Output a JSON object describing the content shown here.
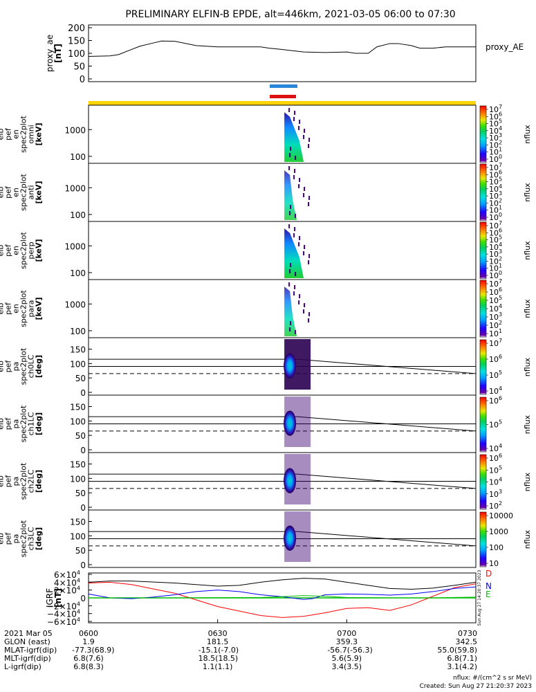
{
  "title": "PRELIMINARY ELFIN-B EPDE, alt=446km, 2021-03-05 06:00 to 07:30",
  "chart_data": [
    {
      "type": "line",
      "id": "proxy_ae",
      "ylabel": [
        "proxy_ae",
        "[nT]"
      ],
      "legend": "proxy_AE",
      "yticks": [
        "200",
        "150",
        "100",
        "50",
        "0"
      ],
      "ylim": [
        0,
        200
      ],
      "x_minutes": [
        0,
        5,
        7,
        10,
        12,
        15,
        17,
        20,
        25,
        30,
        35,
        40,
        42,
        45,
        50,
        55,
        60,
        62,
        65,
        67,
        70,
        72,
        75,
        77,
        80,
        83,
        86,
        90
      ],
      "values": [
        88,
        90,
        95,
        115,
        128,
        140,
        148,
        147,
        130,
        125,
        125,
        125,
        120,
        115,
        105,
        103,
        105,
        100,
        100,
        125,
        138,
        138,
        130,
        120,
        120,
        125,
        125,
        125
      ]
    },
    {
      "type": "heatmap",
      "id": "en_omni",
      "ylabel": [
        "elb",
        "pef",
        "en",
        "spec2plot",
        "omni",
        "[keV]"
      ],
      "yticks": [
        "1000",
        "100"
      ],
      "colorbar": {
        "label": "nflux",
        "ticks": [
          "10",
          "10",
          "10",
          "10",
          "10",
          "10",
          "10",
          "10"
        ],
        "exponents": [
          "7",
          "6",
          "5",
          "4",
          "3",
          "2",
          "1",
          "0"
        ]
      }
    },
    {
      "type": "heatmap",
      "id": "en_anti",
      "ylabel": [
        "elb",
        "pef",
        "en",
        "spec2plot",
        "anti",
        "[keV]"
      ],
      "yticks": [
        "1000",
        "100"
      ],
      "colorbar": {
        "label": "nflux",
        "ticks": [
          "10",
          "10",
          "10",
          "10",
          "10",
          "10",
          "10",
          "10"
        ],
        "exponents": [
          "7",
          "6",
          "5",
          "4",
          "3",
          "2",
          "1",
          "0"
        ]
      }
    },
    {
      "type": "heatmap",
      "id": "en_perp",
      "ylabel": [
        "elb",
        "pef",
        "en",
        "spec2plot",
        "perp",
        "[keV]"
      ],
      "yticks": [
        "1000",
        "100"
      ],
      "colorbar": {
        "label": "nflux",
        "ticks": [
          "10",
          "10",
          "10",
          "10",
          "10",
          "10",
          "10",
          "10"
        ],
        "exponents": [
          "7",
          "6",
          "5",
          "4",
          "3",
          "2",
          "1",
          "0"
        ]
      }
    },
    {
      "type": "heatmap",
      "id": "en_para",
      "ylabel": [
        "elb",
        "pef",
        "en",
        "spec2plot",
        "para",
        "[keV]"
      ],
      "yticks": [
        "1000",
        "100"
      ],
      "colorbar": {
        "label": "nflux",
        "ticks": [
          "10",
          "10",
          "10",
          "10",
          "10",
          "10",
          "10"
        ],
        "exponents": [
          "7",
          "6",
          "5",
          "4",
          "3",
          "2",
          "1"
        ]
      }
    },
    {
      "type": "heatmap",
      "id": "pa_ch0",
      "ylabel": [
        "elb",
        "pef",
        "pa",
        "spec2plot",
        "ch0LC",
        "[deg]"
      ],
      "yticks": [
        "150",
        "100",
        "50",
        "0"
      ],
      "ylim": [
        0,
        180
      ],
      "colorbar": {
        "label": "nflux",
        "ticks": [
          "10",
          "10",
          "10",
          "10"
        ],
        "exponents": [
          "7",
          "6",
          "5",
          "4"
        ]
      }
    },
    {
      "type": "heatmap",
      "id": "pa_ch1",
      "ylabel": [
        "elb",
        "pef",
        "pa",
        "spec2plot",
        "ch1LC",
        "[deg]"
      ],
      "yticks": [
        "150",
        "100",
        "50",
        "0"
      ],
      "ylim": [
        0,
        180
      ],
      "colorbar": {
        "label": "nflux",
        "ticks": [
          "10",
          "10",
          "10"
        ],
        "exponents": [
          "6",
          "5",
          "4"
        ]
      }
    },
    {
      "type": "heatmap",
      "id": "pa_ch2",
      "ylabel": [
        "elb",
        "pef",
        "pa",
        "spec2plot",
        "ch2LC",
        "[deg]"
      ],
      "yticks": [
        "150",
        "100",
        "50",
        "0"
      ],
      "ylim": [
        0,
        180
      ],
      "colorbar": {
        "label": "nflux",
        "ticks": [
          "10",
          "10",
          "10",
          "10",
          "10"
        ],
        "exponents": [
          "6",
          "5",
          "4",
          "3",
          "2"
        ]
      }
    },
    {
      "type": "heatmap",
      "id": "pa_ch3",
      "ylabel": [
        "elb",
        "pef",
        "pa",
        "spec2plot",
        "ch3LC",
        "[deg]"
      ],
      "yticks": [
        "150",
        "100",
        "50",
        "0"
      ],
      "ylim": [
        0,
        180
      ],
      "colorbar": {
        "label": "nflux",
        "ticks": [
          "10000",
          "1000",
          "100",
          "10"
        ],
        "exponents": [
          "",
          "",
          "",
          ""
        ]
      }
    },
    {
      "type": "line",
      "id": "igrf",
      "ylabel": [
        "IGRF",
        "[nT]"
      ],
      "yticks": [
        {
          "m": "6",
          "e": "4",
          "neg": false,
          "v": 60000
        },
        {
          "m": "4",
          "e": "4",
          "neg": false,
          "v": 40000
        },
        {
          "m": "2",
          "e": "4",
          "neg": false,
          "v": 20000
        },
        {
          "m": "",
          "e": "",
          "neg": false,
          "v": 0
        },
        {
          "m": "2",
          "e": "4",
          "neg": true,
          "v": -20000
        },
        {
          "m": "4",
          "e": "4",
          "neg": true,
          "v": -40000
        },
        {
          "m": "6",
          "e": "4",
          "neg": true,
          "v": -60000
        }
      ],
      "ylim": [
        -60000,
        60000
      ],
      "series": [
        {
          "name": "D",
          "color": "#ff0000",
          "x_minutes": [
            0,
            5,
            10,
            20,
            30,
            40,
            45,
            50,
            55,
            60,
            65,
            70,
            75,
            80,
            85,
            90
          ],
          "values": [
            38000,
            40000,
            34000,
            12000,
            -22000,
            -45000,
            -50000,
            -47000,
            -38000,
            -27000,
            -25000,
            -32000,
            -18000,
            4000,
            26000,
            36000
          ]
        },
        {
          "name": "N",
          "color": "#0000ff",
          "x_minutes": [
            0,
            5,
            10,
            15,
            20,
            25,
            30,
            35,
            40,
            45,
            50,
            52,
            55,
            60,
            65,
            70,
            75,
            80,
            85,
            90
          ],
          "values": [
            10000,
            0,
            -2000,
            2000,
            8000,
            16000,
            20000,
            16000,
            8000,
            3000,
            -4000,
            -2000,
            8000,
            10000,
            9000,
            7000,
            10000,
            16000,
            24000,
            28000
          ]
        },
        {
          "name": "E",
          "color": "#00bb00",
          "x_minutes": [
            0,
            20,
            40,
            45,
            50,
            55,
            60,
            70,
            80,
            85,
            90
          ],
          "values": [
            0,
            0,
            1000,
            3000,
            6000,
            4000,
            1000,
            0,
            0,
            1000,
            2000
          ]
        },
        {
          "name": "",
          "color": "#000000",
          "x_minutes": [
            0,
            5,
            10,
            20,
            30,
            35,
            40,
            45,
            50,
            55,
            60,
            65,
            70,
            75,
            80,
            85,
            90
          ],
          "values": [
            40000,
            43000,
            43000,
            38000,
            30000,
            32000,
            40000,
            46000,
            50000,
            48000,
            40000,
            32000,
            24000,
            22000,
            25000,
            32000,
            40000
          ]
        }
      ]
    }
  ],
  "bars": {
    "colors": [
      "#2a86d8",
      "#dd1111",
      "#ffd400"
    ]
  },
  "gray_edge_label": "Sun Aug 27 14:20:37 2023",
  "xaxis": {
    "ticks": [
      "0600",
      "0630",
      "0700",
      "0730"
    ],
    "x_minutes": [
      0,
      30,
      60,
      90
    ]
  },
  "footer": {
    "rows": [
      {
        "label": "2021 Mar 05",
        "values": [
          "0600",
          "0630",
          "0700",
          "0730"
        ]
      },
      {
        "label": "GLON (east)",
        "values": [
          "1.9",
          "181.5",
          "359.3",
          "342.5"
        ]
      },
      {
        "label": "MLAT-igrf(dip)",
        "values": [
          "-77.3(68.9)",
          "-15.1(-7.0)",
          "-56.7(-56.3)",
          "55.0(59.8)"
        ]
      },
      {
        "label": "MLT-igrf(dip)",
        "values": [
          "6.8(7.6)",
          "18.5(18.5)",
          "5.6(5.9)",
          "6.8(7.1)"
        ]
      },
      {
        "label": "L-igrf(dip)",
        "values": [
          "6.8(8.3)",
          "1.1(1.1)",
          "3.4(3.5)",
          "3.1(4.2)"
        ]
      }
    ],
    "units": "nflux: #/(cm^2 s sr MeV)",
    "created": "Created: Sun Aug 27 21:20:37 2023"
  }
}
